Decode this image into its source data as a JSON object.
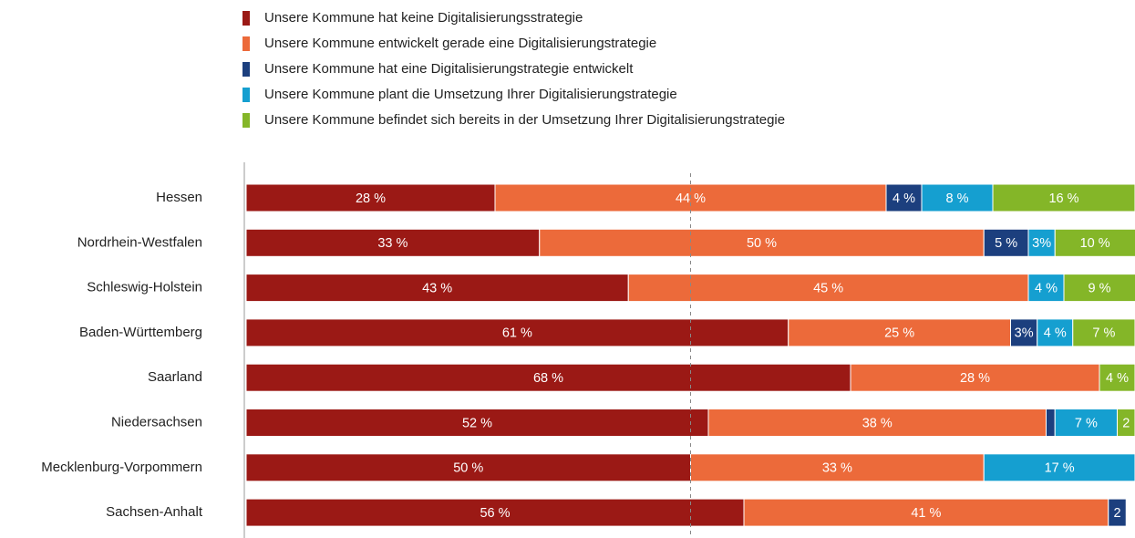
{
  "chart_data": {
    "type": "stacked-bar-horizontal",
    "categories": [
      "Hessen",
      "Nordrhein-Westfalen",
      "Schleswig-Holstein",
      "Baden-Württemberg",
      "Saarland",
      "Niedersachsen",
      "Mecklenburg-Vorpommern",
      "Sachsen-Anhalt"
    ],
    "series": [
      {
        "name": "Unsere Kommune hat keine Digitalisierungsstrategie",
        "color": "#9b1915",
        "values": [
          28,
          33,
          43,
          61,
          68,
          52,
          50,
          56
        ],
        "value_labels": [
          "28 %",
          "33 %",
          "43 %",
          "61 %",
          "68 %",
          "52 %",
          "50 %",
          "56 %"
        ]
      },
      {
        "name": "Unsere Kommune entwickelt gerade eine Digitalisierungstrategie",
        "color": "#ec6a3a",
        "values": [
          44,
          50,
          45,
          25,
          28,
          38,
          33,
          41
        ],
        "value_labels": [
          "44 %",
          "50 %",
          "45 %",
          "25 %",
          "28 %",
          "38 %",
          "33 %",
          "41 %"
        ]
      },
      {
        "name": "Unsere Kommune hat eine Digitalisierungstrategie entwickelt",
        "color": "#1c3f7e",
        "values": [
          4,
          5,
          0,
          3,
          0,
          1,
          0,
          2
        ],
        "value_labels": [
          "4 %",
          "5 %",
          null,
          "3%",
          null,
          null,
          null,
          "2"
        ]
      },
      {
        "name": "Unsere Kommune plant die Umsetzung Ihrer Digitalisierungstrategie",
        "color": "#159fd0",
        "values": [
          8,
          3,
          4,
          4,
          0,
          7,
          17,
          0
        ],
        "value_labels": [
          "8 %",
          "3%",
          "4 %",
          "4 %",
          null,
          "7 %",
          "17 %",
          null
        ]
      },
      {
        "name": "Unsere Kommune befindet sich bereits in der Umsetzung Ihrer Digitalisierungstrategie",
        "color": "#84b628",
        "values": [
          16,
          10,
          9,
          7,
          4,
          2,
          0,
          0
        ],
        "value_labels": [
          "16 %",
          "10 %",
          "9 %",
          "7 %",
          "4 %",
          "2",
          null,
          null
        ]
      }
    ],
    "xlim": [
      0,
      100
    ],
    "reference_line": 50,
    "legend": "top"
  }
}
